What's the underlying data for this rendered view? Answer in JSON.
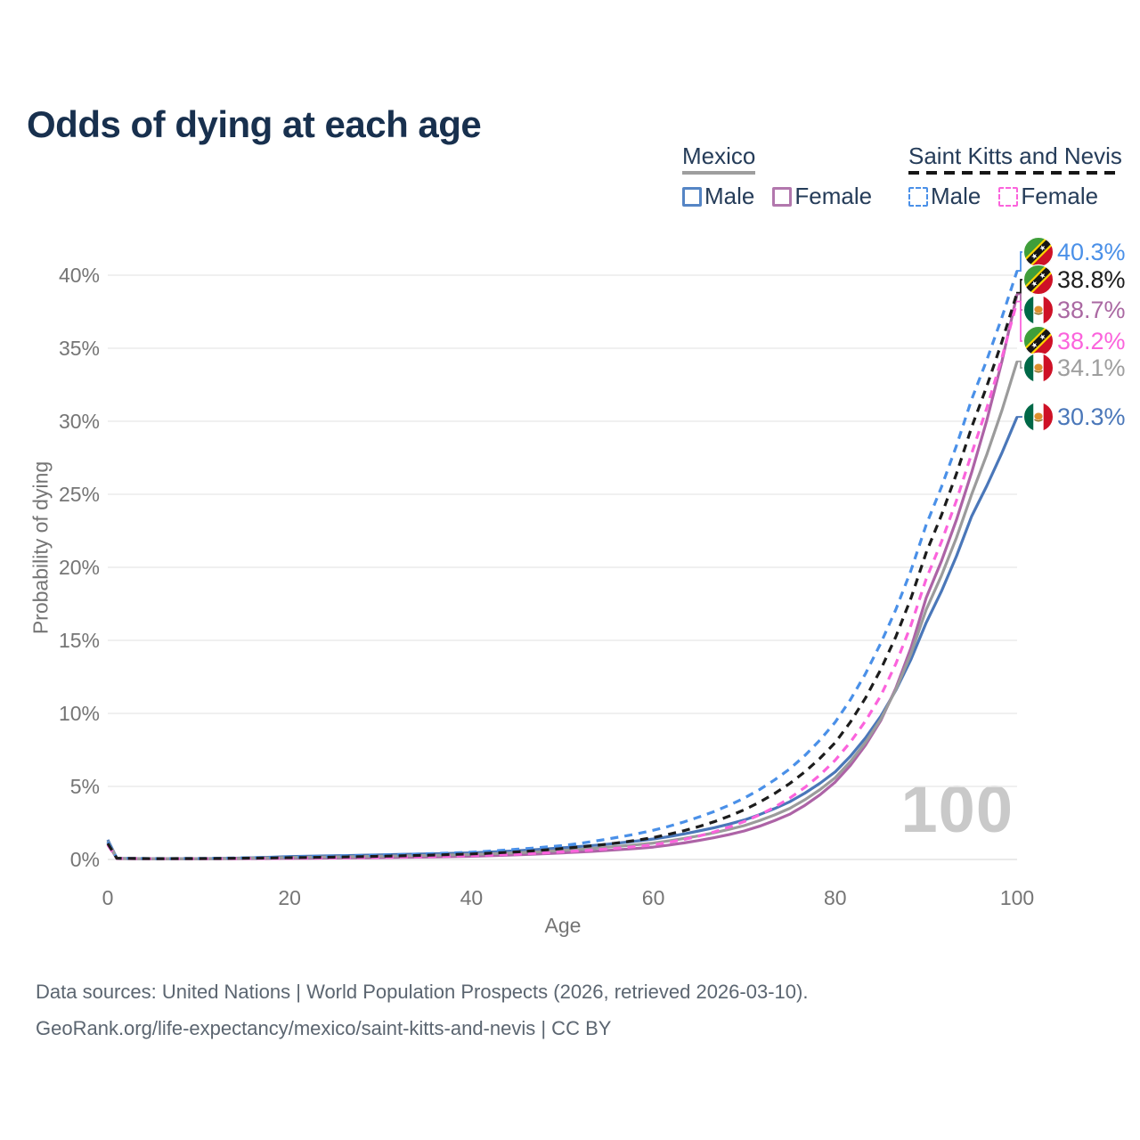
{
  "title": "Odds of dying at each age",
  "legend": {
    "groups": [
      {
        "name": "Mexico",
        "line_style": "solid",
        "underline_color": "#9e9e9e",
        "items": [
          {
            "label": "Male",
            "color": "#5585c5"
          },
          {
            "label": "Female",
            "color": "#b277ad"
          }
        ]
      },
      {
        "name": "Saint Kitts and Nevis",
        "line_style": "dashed",
        "underline_color": "#161616",
        "items": [
          {
            "label": "Male",
            "color": "#4a90e8"
          },
          {
            "label": "Female",
            "color": "#fb63dc"
          }
        ]
      }
    ]
  },
  "chart_data": {
    "type": "line",
    "title": "Odds of dying at each age",
    "xlabel": "Age",
    "ylabel": "Probability of dying",
    "xlim": [
      0,
      100
    ],
    "ylim": [
      0,
      42
    ],
    "grid": true,
    "legend_position": "top-right",
    "hover_age_label": "100",
    "x_ticks": [
      {
        "label": "0",
        "value": 0
      },
      {
        "label": "20",
        "value": 20
      },
      {
        "label": "40",
        "value": 40
      },
      {
        "label": "60",
        "value": 60
      },
      {
        "label": "80",
        "value": 80
      },
      {
        "label": "100",
        "value": 100
      }
    ],
    "y_ticks": [
      {
        "label": "0%",
        "value": 0
      },
      {
        "label": "5%",
        "value": 5
      },
      {
        "label": "10%",
        "value": 10
      },
      {
        "label": "15%",
        "value": 15
      },
      {
        "label": "20%",
        "value": 20
      },
      {
        "label": "25%",
        "value": 25
      },
      {
        "label": "30%",
        "value": 30
      },
      {
        "label": "35%",
        "value": 35
      },
      {
        "label": "40%",
        "value": 40
      }
    ],
    "x": [
      0,
      1,
      5,
      10,
      20,
      30,
      40,
      45,
      50,
      55,
      60,
      65,
      70,
      75,
      80,
      85,
      90,
      95,
      100
    ],
    "series": [
      {
        "name": "Mexico — Male",
        "country": "mexico",
        "sex": "male",
        "dashed": false,
        "color": "#4a77b9",
        "end_value": 30.3,
        "end_label": "30.3%",
        "values": [
          1.35,
          0.08,
          0.05,
          0.05,
          0.2,
          0.32,
          0.45,
          0.6,
          0.8,
          1.05,
          1.4,
          1.95,
          2.7,
          3.95,
          6.0,
          9.8,
          16.2,
          23.5,
          30.3
        ]
      },
      {
        "name": "Mexico — Female",
        "country": "mexico",
        "sex": "female",
        "dashed": false,
        "color": "#ad63a6",
        "end_value": 38.7,
        "end_label": "38.7%",
        "values": [
          1.1,
          0.06,
          0.04,
          0.04,
          0.08,
          0.13,
          0.22,
          0.32,
          0.45,
          0.62,
          0.85,
          1.3,
          1.95,
          3.1,
          5.3,
          9.5,
          17.9,
          26.5,
          38.7
        ]
      },
      {
        "name": "Mexico — Both sexes",
        "country": "mexico",
        "sex": "both",
        "dashed": false,
        "color": "#9b9b9b",
        "end_value": 34.1,
        "end_label": "34.1%",
        "values": [
          1.25,
          0.07,
          0.045,
          0.045,
          0.14,
          0.22,
          0.34,
          0.46,
          0.62,
          0.84,
          1.12,
          1.62,
          2.32,
          3.5,
          5.6,
          9.6,
          17.1,
          25.0,
          34.1
        ]
      },
      {
        "name": "Saint Kitts and Nevis — Male",
        "country": "saint-kitts-and-nevis",
        "sex": "male",
        "dashed": true,
        "color": "#4a90e8",
        "end_value": 40.3,
        "end_label": "40.3%",
        "values": [
          1.2,
          0.09,
          0.06,
          0.07,
          0.17,
          0.3,
          0.5,
          0.7,
          0.95,
          1.4,
          2.0,
          2.9,
          4.2,
          6.2,
          9.4,
          14.8,
          22.9,
          31.5,
          40.3
        ]
      },
      {
        "name": "Saint Kitts and Nevis — Female",
        "country": "saint-kitts-and-nevis",
        "sex": "female",
        "dashed": true,
        "color": "#fb63dc",
        "end_value": 38.2,
        "end_label": "38.2%",
        "values": [
          1.0,
          0.07,
          0.05,
          0.05,
          0.08,
          0.14,
          0.26,
          0.36,
          0.52,
          0.72,
          1.0,
          1.6,
          2.6,
          4.2,
          6.8,
          11.2,
          19.2,
          27.8,
          38.2
        ]
      },
      {
        "name": "Saint Kitts and Nevis — Both sexes",
        "country": "saint-kitts-and-nevis",
        "sex": "both",
        "dashed": true,
        "color": "#1c1c1c",
        "end_value": 38.8,
        "end_label": "38.8%",
        "values": [
          1.1,
          0.08,
          0.055,
          0.06,
          0.12,
          0.22,
          0.38,
          0.52,
          0.75,
          1.05,
          1.5,
          2.25,
          3.4,
          5.2,
          8.0,
          13.0,
          21.0,
          29.6,
          38.8
        ]
      }
    ],
    "end_labels": [
      {
        "value": "40.3%",
        "end_value": 40.3,
        "country": "saint-kitts-and-nevis",
        "color": "#4a90e8"
      },
      {
        "value": "38.8%",
        "end_value": 38.8,
        "country": "saint-kitts-and-nevis",
        "color": "#1c1c1c"
      },
      {
        "value": "38.7%",
        "end_value": 38.7,
        "country": "mexico",
        "color": "#aa68a2"
      },
      {
        "value": "38.2%",
        "end_value": 38.2,
        "country": "saint-kitts-and-nevis",
        "color": "#fb63dc"
      },
      {
        "value": "34.1%",
        "end_value": 34.1,
        "country": "mexico",
        "color": "#9e9e9e"
      },
      {
        "value": "30.3%",
        "end_value": 30.3,
        "country": "mexico",
        "color": "#4a77b9"
      }
    ],
    "flag_colors": {
      "mexico": {
        "green": "#006847",
        "white": "#ffffff",
        "red": "#ce1126",
        "emblem": "#dd8f2d"
      },
      "saint_kitts_and_nevis": {
        "green": "#3f9e3a",
        "red": "#ce1126",
        "black": "#161616",
        "yellow": "#ffd500",
        "star": "#ffffff"
      }
    }
  },
  "footer": {
    "line1": "Data sources: United Nations | World Population Prospects (2026, retrieved 2026-03-10).",
    "line2": "GeoRank.org/life-expectancy/mexico/saint-kitts-and-nevis | CC BY"
  }
}
